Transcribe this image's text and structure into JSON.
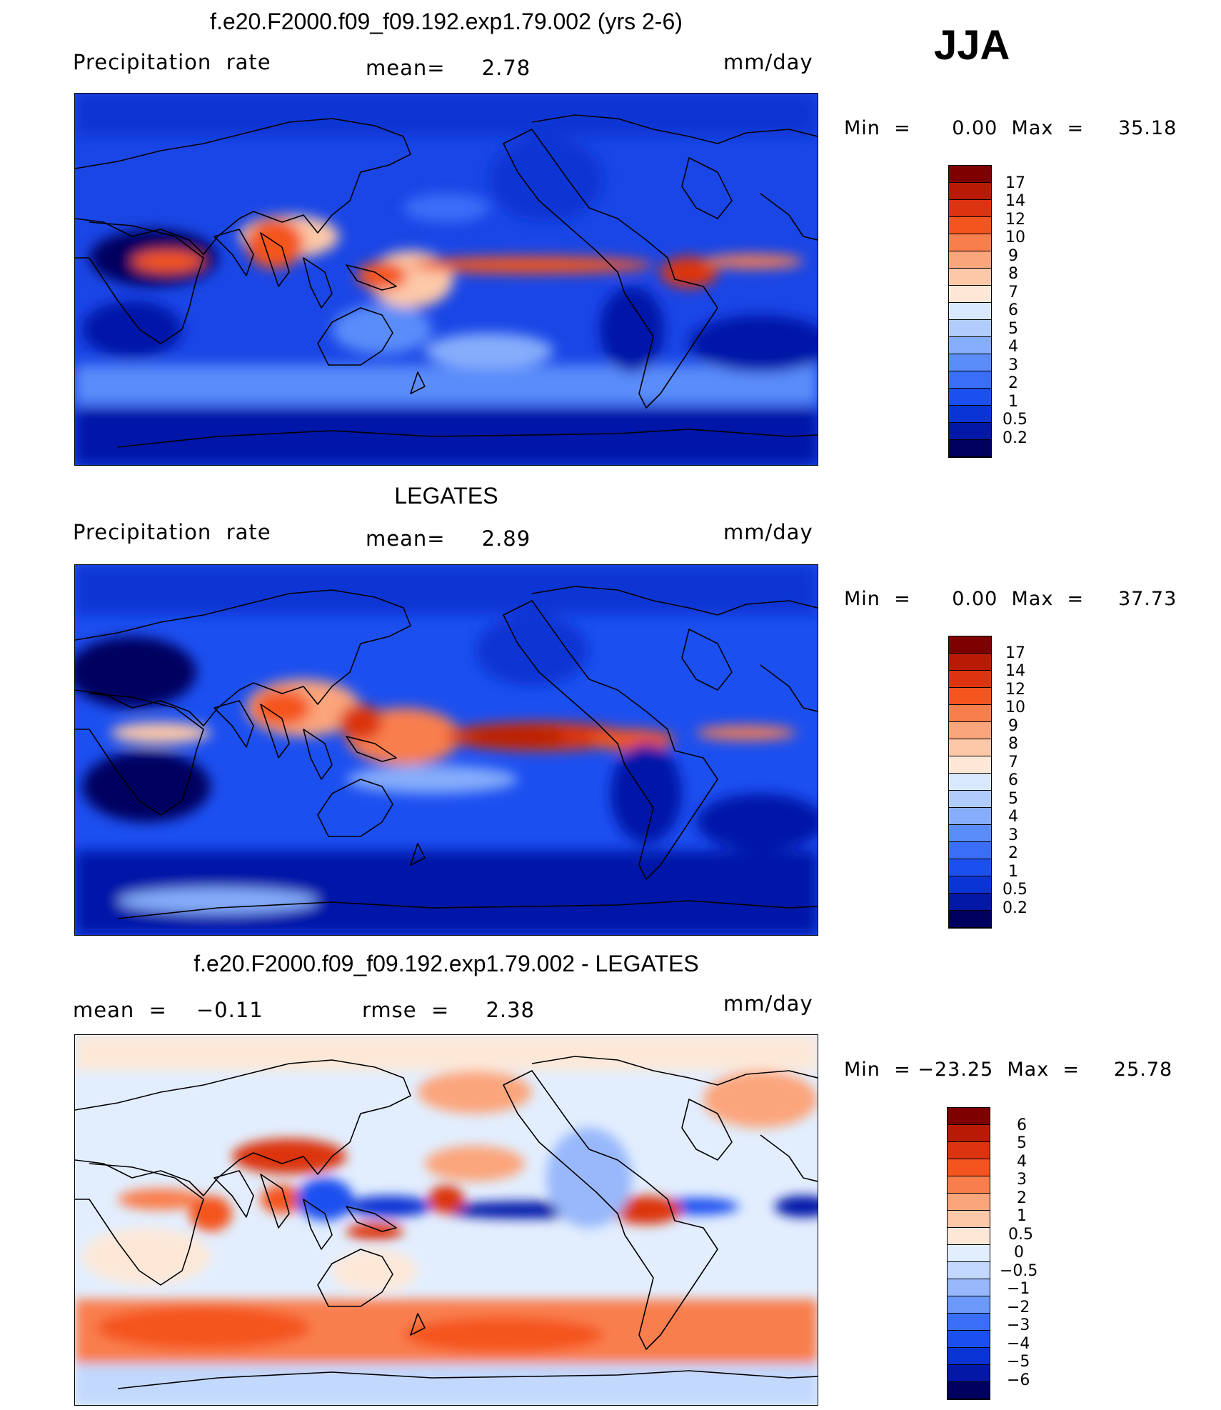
{
  "season": "JJA",
  "colors": {
    "precip": [
      "#00005e",
      "#0418a8",
      "#0a34d4",
      "#1c4ff0",
      "#3a6ef8",
      "#5a8cfa",
      "#86adfb",
      "#b0ccfc",
      "#d8e8fe",
      "#fde8d8",
      "#fcc8a8",
      "#fba57c",
      "#f97e4e",
      "#f4541e",
      "#dc3410",
      "#b81a06",
      "#7e0000"
    ],
    "diff": [
      "#00005e",
      "#0418a8",
      "#0a34d4",
      "#1c4ff0",
      "#3a6ef8",
      "#6c98fa",
      "#98b8fb",
      "#c2d8fd",
      "#e2eefe",
      "#fde8d8",
      "#fcc8a8",
      "#fba57c",
      "#f97e4e",
      "#f4541e",
      "#dc3410",
      "#b81a06",
      "#7e0000"
    ]
  },
  "panels": [
    {
      "title": "f.e20.F2000.f09_f09.192.exp1.79.002 (yrs 2-6)",
      "left_label": "Precipitation  rate",
      "center_label": "mean=     2.78",
      "units": "mm/day",
      "minmax": "Min  =      0.00  Max  =     35.18",
      "colorbar_labels": [
        "17",
        "14",
        "12",
        "10",
        "9",
        "8",
        "7",
        "6",
        "5",
        "4",
        "3",
        "2",
        "1",
        "0.5",
        "0.2"
      ],
      "palette": "precip"
    },
    {
      "title": "LEGATES",
      "left_label": "Precipitation  rate",
      "center_label": "mean=     2.89",
      "units": "mm/day",
      "minmax": "Min  =      0.00  Max  =     37.73",
      "colorbar_labels": [
        "17",
        "14",
        "12",
        "10",
        "9",
        "8",
        "7",
        "6",
        "5",
        "4",
        "3",
        "2",
        "1",
        "0.5",
        "0.2"
      ],
      "palette": "precip"
    },
    {
      "title": "f.e20.F2000.f09_f09.192.exp1.79.002 - LEGATES",
      "left_label": "mean  =    −0.11",
      "center_label": "rmse  =     2.38",
      "units": "mm/day",
      "minmax": "Min  = −23.25  Max  =     25.78",
      "colorbar_labels": [
        "6",
        "5",
        "4",
        "3",
        "2",
        "1",
        "0.5",
        "0",
        "−0.5",
        "−1",
        "−2",
        "−3",
        "−4",
        "−5",
        "−6"
      ],
      "palette": "diff"
    }
  ]
}
